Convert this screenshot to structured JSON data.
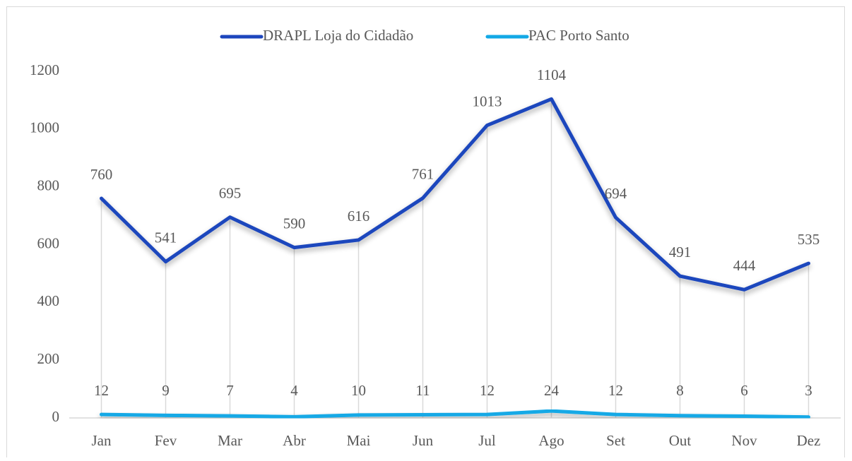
{
  "chart_data": {
    "type": "line",
    "categories": [
      "Jan",
      "Fev",
      "Mar",
      "Abr",
      "Mai",
      "Jun",
      "Jul",
      "Ago",
      "Set",
      "Out",
      "Nov",
      "Dez"
    ],
    "series": [
      {
        "name": "DRAPL Loja do Cidadão",
        "color": "#1c46bd",
        "values": [
          760,
          541,
          695,
          590,
          616,
          761,
          1013,
          1104,
          694,
          491,
          444,
          535
        ]
      },
      {
        "name": "PAC Porto Santo",
        "color": "#13a9e6",
        "values": [
          12,
          9,
          7,
          4,
          10,
          11,
          12,
          24,
          12,
          8,
          6,
          3
        ]
      }
    ],
    "ylim": [
      0,
      1200
    ],
    "yticks": [
      0,
      200,
      400,
      600,
      800,
      1000,
      1200
    ],
    "legend": "top",
    "data_labels": true
  }
}
